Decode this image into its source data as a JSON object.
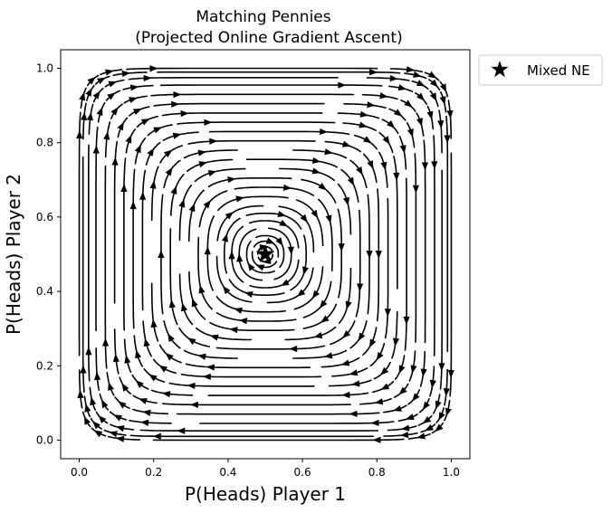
{
  "chart_data": {
    "type": "streamplot",
    "title": "Matching Pennies\n(Projected Online Gradient Ascent)",
    "title_lines": [
      "Matching Pennies",
      "(Projected Online Gradient Ascent)"
    ],
    "xlabel": "P(Heads) Player 1",
    "ylabel": "P(Heads) Player 2",
    "xlim": [
      -0.05,
      1.05
    ],
    "ylim": [
      -0.05,
      1.05
    ],
    "xticks": [
      0.0,
      0.2,
      0.4,
      0.6,
      0.8,
      1.0
    ],
    "yticks": [
      0.0,
      0.2,
      0.4,
      0.6,
      0.8,
      1.0
    ],
    "xtick_labels": [
      "0.0",
      "0.2",
      "0.4",
      "0.6",
      "0.8",
      "1.0"
    ],
    "ytick_labels": [
      "0.0",
      "0.2",
      "0.4",
      "0.6",
      "0.8",
      "1.0"
    ],
    "grid": false,
    "flow": {
      "description": "clockwise rotation around the mixed equilibrium",
      "center": [
        0.5,
        0.5
      ],
      "direction": "clockwise",
      "orbit_half_widths": [
        0.02,
        0.035,
        0.05,
        0.07,
        0.09,
        0.11,
        0.13,
        0.155,
        0.18,
        0.205,
        0.23,
        0.255,
        0.28,
        0.305,
        0.33,
        0.355,
        0.38,
        0.405,
        0.43,
        0.455,
        0.475,
        0.49,
        0.5
      ]
    },
    "series": [
      {
        "name": "Mixed NE",
        "type": "scatter",
        "marker": "star",
        "x": [
          0.5
        ],
        "y": [
          0.5
        ]
      }
    ],
    "legend": {
      "placement": "outside-top-right",
      "entries": [
        "Mixed NE"
      ]
    },
    "color": "#000000"
  }
}
